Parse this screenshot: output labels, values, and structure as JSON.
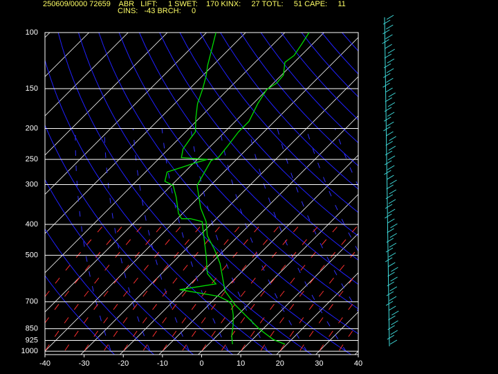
{
  "chart_data": {
    "type": "skewt",
    "header": [
      "250609/0000 72659    ABR   LIFT:     1 SWET:    170 KINX:     27 TOTL:     51 CAPE:     11",
      "CINS:   -43 BRCH:     0"
    ],
    "xlim": [
      -40,
      40
    ],
    "xticks": [
      -40,
      -30,
      -20,
      -10,
      0,
      10,
      20,
      30,
      40
    ],
    "ylim": [
      100,
      1025
    ],
    "yticks": [
      100,
      150,
      200,
      250,
      300,
      400,
      500,
      700,
      850,
      925,
      1000
    ],
    "ylog": true,
    "grid": true,
    "series": [
      {
        "color": "#00e000",
        "x": [
          19.5,
          15.3,
          9.1,
          2.0,
          -3.3,
          -9.4,
          -17.7,
          -22.7,
          -28.0,
          -31.9,
          -36.8,
          -43.4,
          -44.8,
          -46.2,
          -45.1,
          -45.7,
          -46.5,
          -46.5,
          -48.8,
          -50.1,
          -49.2,
          -49.5,
          -52.4,
          -51.8,
          -52.7,
          -53.8
        ],
        "values": [
          951,
          919,
          852,
          771,
          715,
          647,
          530,
          479,
          434,
          392,
          355,
          302,
          276,
          252,
          247,
          226,
          205,
          190,
          167,
          151,
          144,
          136,
          124,
          118,
          109,
          100
        ]
      },
      {
        "color": "#00e000",
        "x": [
          6.1,
          3.8,
          1.5,
          -1.1,
          -4.1,
          -5.9,
          -9.6,
          -21.3,
          -13.5,
          -18.3,
          -23.0,
          -28.9,
          -32.9,
          -36.6,
          -38.9,
          -41.1,
          -45.7,
          -49.5,
          -52.7,
          -54.5,
          -52.0,
          -49.5,
          -47.4,
          -54.5,
          -56.3,
          -57.1,
          -57.5,
          -61.0,
          -64.2,
          -66.5,
          -69.0,
          -71.3,
          -73.9,
          -77.6
        ],
        "values": [
          951,
          896,
          831,
          771,
          715,
          697,
          673,
          641,
          615,
          571,
          504,
          434,
          392,
          384,
          384,
          369,
          329,
          302,
          293,
          274,
          265,
          256,
          250,
          247,
          232,
          215,
          205,
          185,
          167,
          151,
          137,
          127,
          115,
          100
        ]
      }
    ]
  }
}
